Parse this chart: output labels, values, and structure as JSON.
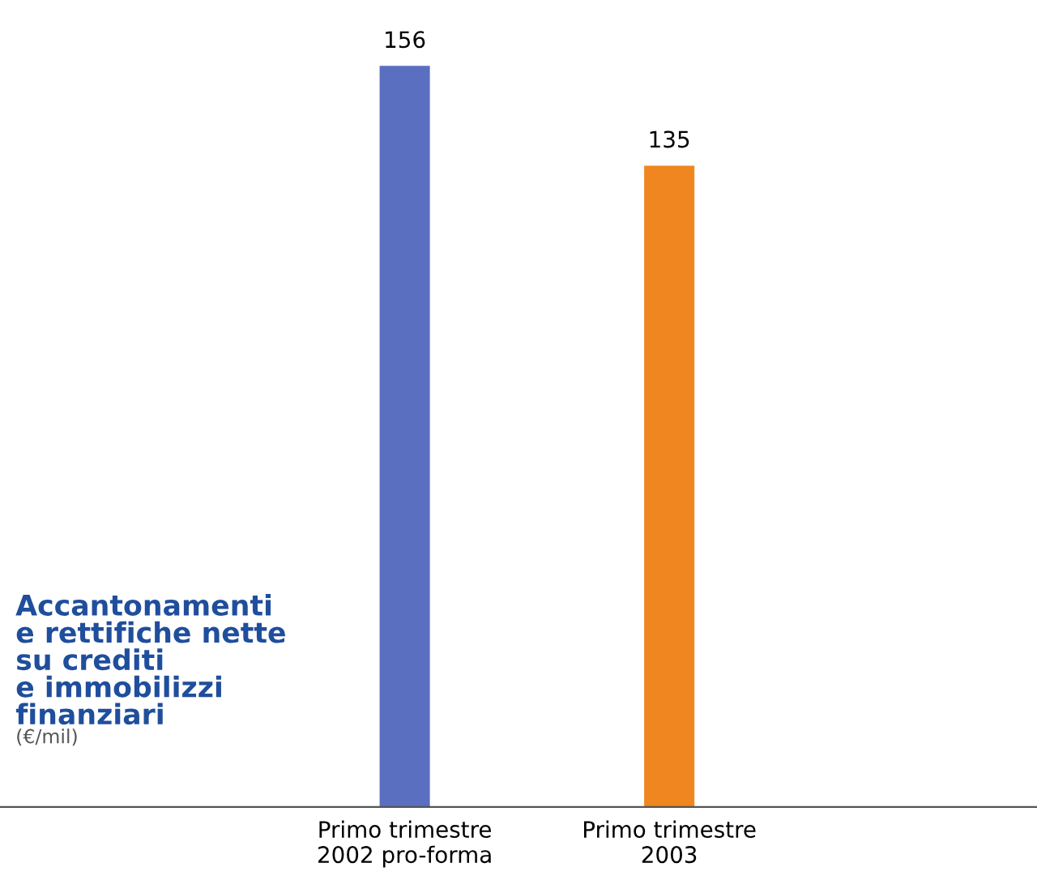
{
  "chart_data": {
    "type": "bar",
    "title": "Accantonamenti\ne rettifiche nette\nsu crediti\ne immobilizzi\nfinanziari",
    "subtitle": "(€/mil)",
    "categories": [
      "Primo trimestre\n2002 pro-forma",
      "Primo trimestre\n2003"
    ],
    "values": [
      156,
      135
    ],
    "colors": [
      "#5b6fc0",
      "#f0861f"
    ],
    "data_labels": true,
    "grid": false,
    "legend": false
  }
}
